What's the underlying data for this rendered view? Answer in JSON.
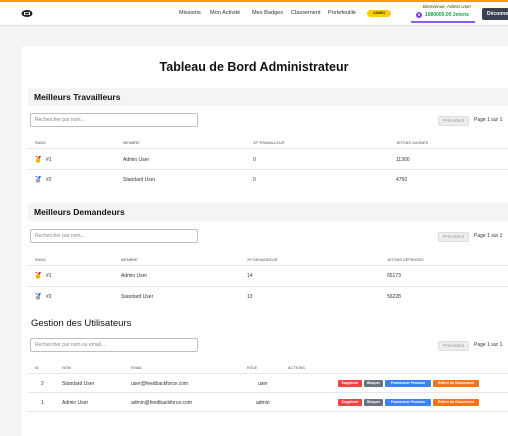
{
  "header": {
    "nav": [
      "Missions",
      "Mon Activité",
      "Mes Badges",
      "Classement",
      "Portefeuille"
    ],
    "admin_badge": "ADMIN",
    "welcome": "Bienvenue, Admin User",
    "coin_symbol": "$",
    "tokens": "1980000.00 Jetons",
    "logout": "Déconnexion",
    "colors": {
      "accent": "#f59e0b",
      "badge": "#facc15",
      "tokens": "#16a34a",
      "active": "#8b5cf6"
    }
  },
  "page": {
    "title": "Tableau de Bord Administrateur"
  },
  "workers": {
    "title": "Meilleurs Travailleurs",
    "search_placeholder": "Rechercher par nom...",
    "prev": "Précédent",
    "page_info": "Page 1 sur 1",
    "columns": [
      "RANG",
      "MEMBRE",
      "XP TRAVAILLEUR",
      "JETONS GAGNÉS"
    ],
    "rows": [
      {
        "rank": "#1",
        "medal": "gold-medal-icon",
        "member": "Admin User",
        "xp": "0",
        "tokens": "11300"
      },
      {
        "rank": "#2",
        "medal": "silver-medal-icon",
        "member": "Standard User",
        "xp": "0",
        "tokens": "4750"
      }
    ]
  },
  "requesters": {
    "title": "Meilleurs Demandeurs",
    "search_placeholder": "Rechercher par nom...",
    "prev": "Précédent",
    "page_info": "Page 1 sur 1",
    "columns": [
      "RANG",
      "MEMBRE",
      "XP DEMANDEUR",
      "JETONS DÉPENSÉS"
    ],
    "rows": [
      {
        "rank": "#1",
        "medal": "gold-medal-icon",
        "member": "Admin User",
        "xp": "14",
        "tokens": "65173"
      },
      {
        "rank": "#2",
        "medal": "silver-medal-icon",
        "member": "Standard User",
        "xp": "13",
        "tokens": "56228"
      }
    ]
  },
  "users": {
    "title": "Gestion des Utilisateurs",
    "search_placeholder": "Rechercher par nom ou email...",
    "prev": "Précédent",
    "page_info": "Page 1 sur 1",
    "columns": [
      "ID",
      "NOM",
      "EMAIL",
      "RÔLE",
      "ACTIONS"
    ],
    "rows": [
      {
        "id": "2",
        "name": "Standard User",
        "email": "user@feedbackforce.com",
        "role": "user"
      },
      {
        "id": "1",
        "name": "Admin User",
        "email": "admin@feedbackforce.com",
        "role": "admin"
      }
    ],
    "actions": {
      "delete": "Supprimer",
      "block": "Bloquer",
      "promote": "Promouvoir Premium",
      "remove": "Retirer du Classement"
    }
  }
}
